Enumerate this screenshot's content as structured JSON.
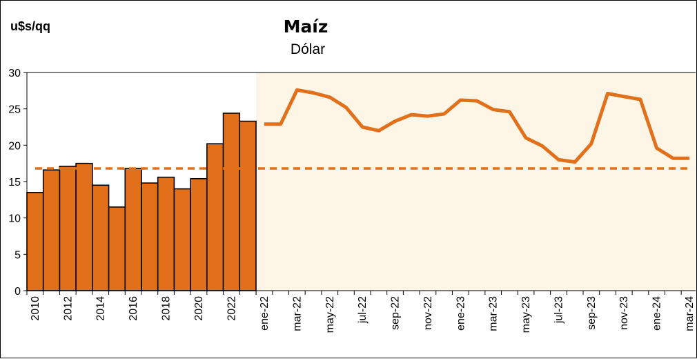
{
  "chart_data": {
    "type": "bar+line",
    "title": "Maíz",
    "subtitle": "Dólar",
    "ylabel": "u$s/qq",
    "ylim": [
      0,
      30
    ],
    "yticks": [
      0,
      5,
      10,
      15,
      20,
      25,
      30
    ],
    "colors": {
      "bar_fill": "#E2701A",
      "bar_stroke": "#000000",
      "line": "#E2701A",
      "reference_line": "#E2701A",
      "plot_background": "#FDF5E6"
    },
    "reference_line": {
      "value": 16.8,
      "style": "dashed"
    },
    "annual": {
      "type": "bar",
      "categories": [
        "2010",
        "2011",
        "2012",
        "2013",
        "2014",
        "2015",
        "2016",
        "2017",
        "2018",
        "2019",
        "2020",
        "2021",
        "2022",
        "2023"
      ],
      "tick_labels": [
        "2010",
        "2012",
        "2014",
        "2016",
        "2018",
        "2020",
        "2022"
      ],
      "values": [
        13.5,
        16.6,
        17.1,
        17.5,
        14.5,
        11.5,
        16.8,
        14.8,
        15.6,
        14.0,
        15.4,
        20.2,
        24.4,
        23.3
      ]
    },
    "monthly": {
      "type": "line",
      "categories": [
        "ene-22",
        "feb-22",
        "mar-22",
        "abr-22",
        "may-22",
        "jun-22",
        "jul-22",
        "ago-22",
        "sep-22",
        "oct-22",
        "nov-22",
        "dic-22",
        "ene-23",
        "feb-23",
        "mar-23",
        "abr-23",
        "may-23",
        "jun-23",
        "jul-23",
        "ago-23",
        "sep-23",
        "oct-23",
        "nov-23",
        "dic-23",
        "ene-24",
        "feb-24",
        "mar-24"
      ],
      "tick_labels": [
        "ene-22",
        "mar-22",
        "may-22",
        "jul-22",
        "sep-22",
        "nov-22",
        "ene-23",
        "mar-23",
        "may-23",
        "jul-23",
        "sep-23",
        "nov-23",
        "ene-24",
        "mar-24"
      ],
      "values": [
        22.9,
        22.9,
        27.6,
        27.2,
        26.6,
        25.2,
        22.5,
        22.0,
        23.3,
        24.2,
        24.0,
        24.3,
        26.2,
        26.1,
        24.9,
        24.6,
        21.0,
        19.9,
        18.0,
        17.7,
        20.2,
        27.1,
        26.7,
        26.3,
        19.6,
        18.2,
        18.2
      ]
    }
  }
}
